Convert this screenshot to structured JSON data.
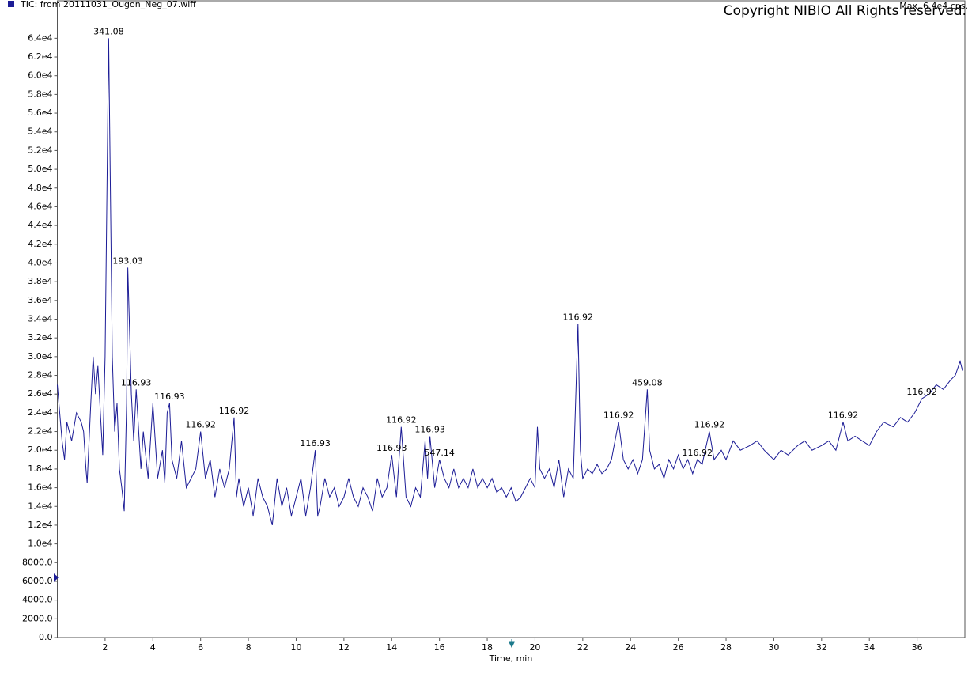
{
  "chart_data": {
    "type": "line",
    "title": "TIC: from 20111031_Ougon_Neg_07.wiff",
    "max_label": "Max. 6.4e4 cps.",
    "copyright": "Copyright NIBIO All Rights reserved.",
    "xlabel": "Time, min",
    "color": "#1c1c96",
    "xlim": [
      0,
      38
    ],
    "ylim": [
      0,
      68000
    ],
    "xticks": [
      2,
      4,
      6,
      8,
      10,
      12,
      14,
      16,
      18,
      20,
      22,
      24,
      26,
      28,
      30,
      32,
      34,
      36
    ],
    "yticks": [
      {
        "value": 0,
        "label": "0.0"
      },
      {
        "value": 2000,
        "label": "2000.0"
      },
      {
        "value": 4000,
        "label": "4000.0"
      },
      {
        "value": 6000,
        "label": "6000.0"
      },
      {
        "value": 8000,
        "label": "8000.0"
      },
      {
        "value": 10000,
        "label": "1.0e4"
      },
      {
        "value": 12000,
        "label": "1.2e4"
      },
      {
        "value": 14000,
        "label": "1.4e4"
      },
      {
        "value": 16000,
        "label": "1.6e4"
      },
      {
        "value": 18000,
        "label": "1.8e4"
      },
      {
        "value": 20000,
        "label": "2.0e4"
      },
      {
        "value": 22000,
        "label": "2.2e4"
      },
      {
        "value": 24000,
        "label": "2.4e4"
      },
      {
        "value": 26000,
        "label": "2.6e4"
      },
      {
        "value": 28000,
        "label": "2.8e4"
      },
      {
        "value": 30000,
        "label": "3.0e4"
      },
      {
        "value": 32000,
        "label": "3.2e4"
      },
      {
        "value": 34000,
        "label": "3.4e4"
      },
      {
        "value": 36000,
        "label": "3.6e4"
      },
      {
        "value": 38000,
        "label": "3.8e4"
      },
      {
        "value": 40000,
        "label": "4.0e4"
      },
      {
        "value": 42000,
        "label": "4.2e4"
      },
      {
        "value": 44000,
        "label": "4.4e4"
      },
      {
        "value": 46000,
        "label": "4.6e4"
      },
      {
        "value": 48000,
        "label": "4.8e4"
      },
      {
        "value": 50000,
        "label": "5.0e4"
      },
      {
        "value": 52000,
        "label": "5.2e4"
      },
      {
        "value": 54000,
        "label": "5.4e4"
      },
      {
        "value": 56000,
        "label": "5.6e4"
      },
      {
        "value": 58000,
        "label": "5.8e4"
      },
      {
        "value": 60000,
        "label": "6.0e4"
      },
      {
        "value": 62000,
        "label": "6.2e4"
      },
      {
        "value": 64000,
        "label": "6.4e4"
      }
    ],
    "x": [
      0,
      0.1,
      0.2,
      0.3,
      0.4,
      0.6,
      0.8,
      1.0,
      1.1,
      1.2,
      1.25,
      1.4,
      1.5,
      1.6,
      1.7,
      1.8,
      1.9,
      2.0,
      2.15,
      2.3,
      2.4,
      2.5,
      2.6,
      2.7,
      2.8,
      2.9,
      2.95,
      3.1,
      3.2,
      3.3,
      3.5,
      3.6,
      3.8,
      4.0,
      4.2,
      4.4,
      4.5,
      4.6,
      4.7,
      4.8,
      5.0,
      5.2,
      5.4,
      5.6,
      5.8,
      6.0,
      6.2,
      6.4,
      6.6,
      6.8,
      7.0,
      7.2,
      7.4,
      7.5,
      7.6,
      7.8,
      8.0,
      8.2,
      8.4,
      8.6,
      8.8,
      9.0,
      9.2,
      9.4,
      9.6,
      9.8,
      10.0,
      10.2,
      10.4,
      10.6,
      10.8,
      10.9,
      11.0,
      11.2,
      11.4,
      11.6,
      11.8,
      12.0,
      12.2,
      12.4,
      12.6,
      12.8,
      13.0,
      13.2,
      13.4,
      13.6,
      13.8,
      14.0,
      14.2,
      14.4,
      14.6,
      14.8,
      15.0,
      15.2,
      15.4,
      15.5,
      15.6,
      15.8,
      16.0,
      16.2,
      16.4,
      16.6,
      16.8,
      17.0,
      17.2,
      17.4,
      17.6,
      17.8,
      18.0,
      18.2,
      18.4,
      18.6,
      18.8,
      19.0,
      19.2,
      19.4,
      19.6,
      19.8,
      20.0,
      20.1,
      20.2,
      20.4,
      20.6,
      20.8,
      21.0,
      21.2,
      21.4,
      21.6,
      21.8,
      21.9,
      22.0,
      22.2,
      22.4,
      22.6,
      22.8,
      23.0,
      23.2,
      23.5,
      23.7,
      23.9,
      24.1,
      24.3,
      24.5,
      24.7,
      24.8,
      25.0,
      25.2,
      25.4,
      25.6,
      25.8,
      26.0,
      26.2,
      26.4,
      26.6,
      26.8,
      27.0,
      27.3,
      27.5,
      27.8,
      28.0,
      28.3,
      28.6,
      29.0,
      29.3,
      29.6,
      30.0,
      30.3,
      30.6,
      31.0,
      31.3,
      31.6,
      32.0,
      32.3,
      32.6,
      32.9,
      33.1,
      33.4,
      33.7,
      34.0,
      34.3,
      34.6,
      35.0,
      35.3,
      35.6,
      35.9,
      36.2,
      36.5,
      36.8,
      37.1,
      37.4,
      37.6,
      37.8,
      37.9
    ],
    "values": [
      27000,
      24000,
      21000,
      19000,
      23000,
      21000,
      24000,
      23000,
      22000,
      18000,
      16500,
      25000,
      30000,
      26000,
      29000,
      24000,
      19500,
      30000,
      64000,
      30000,
      22000,
      25000,
      18000,
      16000,
      13500,
      25000,
      39500,
      26000,
      21000,
      26500,
      18000,
      22000,
      17000,
      25000,
      17000,
      20000,
      16500,
      24000,
      25000,
      19000,
      17000,
      21000,
      16000,
      17000,
      18000,
      22000,
      17000,
      19000,
      15000,
      18000,
      16000,
      18000,
      23500,
      15000,
      17000,
      14000,
      16000,
      13000,
      17000,
      15000,
      14000,
      12000,
      17000,
      14000,
      16000,
      13000,
      15000,
      17000,
      13000,
      16000,
      20000,
      13000,
      14000,
      17000,
      15000,
      16000,
      14000,
      15000,
      17000,
      15000,
      14000,
      16000,
      15000,
      13500,
      17000,
      15000,
      16000,
      19500,
      15000,
      22500,
      15000,
      14000,
      16000,
      15000,
      21000,
      17000,
      21500,
      16000,
      19000,
      17000,
      16000,
      18000,
      16000,
      17000,
      16000,
      18000,
      16000,
      17000,
      16000,
      17000,
      15500,
      16000,
      15000,
      16000,
      14500,
      15000,
      16000,
      17000,
      16000,
      22500,
      18000,
      17000,
      18000,
      16000,
      19000,
      15000,
      18000,
      17000,
      33500,
      20000,
      17000,
      18000,
      17500,
      18500,
      17500,
      18000,
      19000,
      23000,
      19000,
      18000,
      19000,
      17500,
      19000,
      26500,
      20000,
      18000,
      18500,
      17000,
      19000,
      18000,
      19500,
      18000,
      19000,
      17500,
      19000,
      18500,
      22000,
      19000,
      20000,
      19000,
      21000,
      20000,
      20500,
      21000,
      20000,
      19000,
      20000,
      19500,
      20500,
      21000,
      20000,
      20500,
      21000,
      20000,
      23000,
      21000,
      21500,
      21000,
      20500,
      22000,
      23000,
      22500,
      23500,
      23000,
      24000,
      25500,
      26000,
      27000,
      26500,
      27500,
      28000,
      29500,
      28500
    ],
    "annotations": [
      {
        "text": "341.08",
        "x": 2.15
      },
      {
        "text": "193.03",
        "x": 2.95
      },
      {
        "text": "116.93",
        "x": 3.3
      },
      {
        "text": "116.93",
        "x": 4.7
      },
      {
        "text": "116.92",
        "x": 6.0
      },
      {
        "text": "116.92",
        "x": 7.4
      },
      {
        "text": "116.93",
        "x": 10.8
      },
      {
        "text": "116.93",
        "x": 14.0
      },
      {
        "text": "116.92",
        "x": 14.4
      },
      {
        "text": "116.93",
        "x": 15.6
      },
      {
        "text": "547.14",
        "x": 16.0
      },
      {
        "text": "116.92",
        "x": 21.8
      },
      {
        "text": "116.92",
        "x": 23.5
      },
      {
        "text": "459.08",
        "x": 24.7
      },
      {
        "text": "116.92",
        "x": 26.8
      },
      {
        "text": "116.92",
        "x": 27.3
      },
      {
        "text": "116.92",
        "x": 32.9
      },
      {
        "text": "116.92",
        "x": 36.2
      }
    ]
  }
}
